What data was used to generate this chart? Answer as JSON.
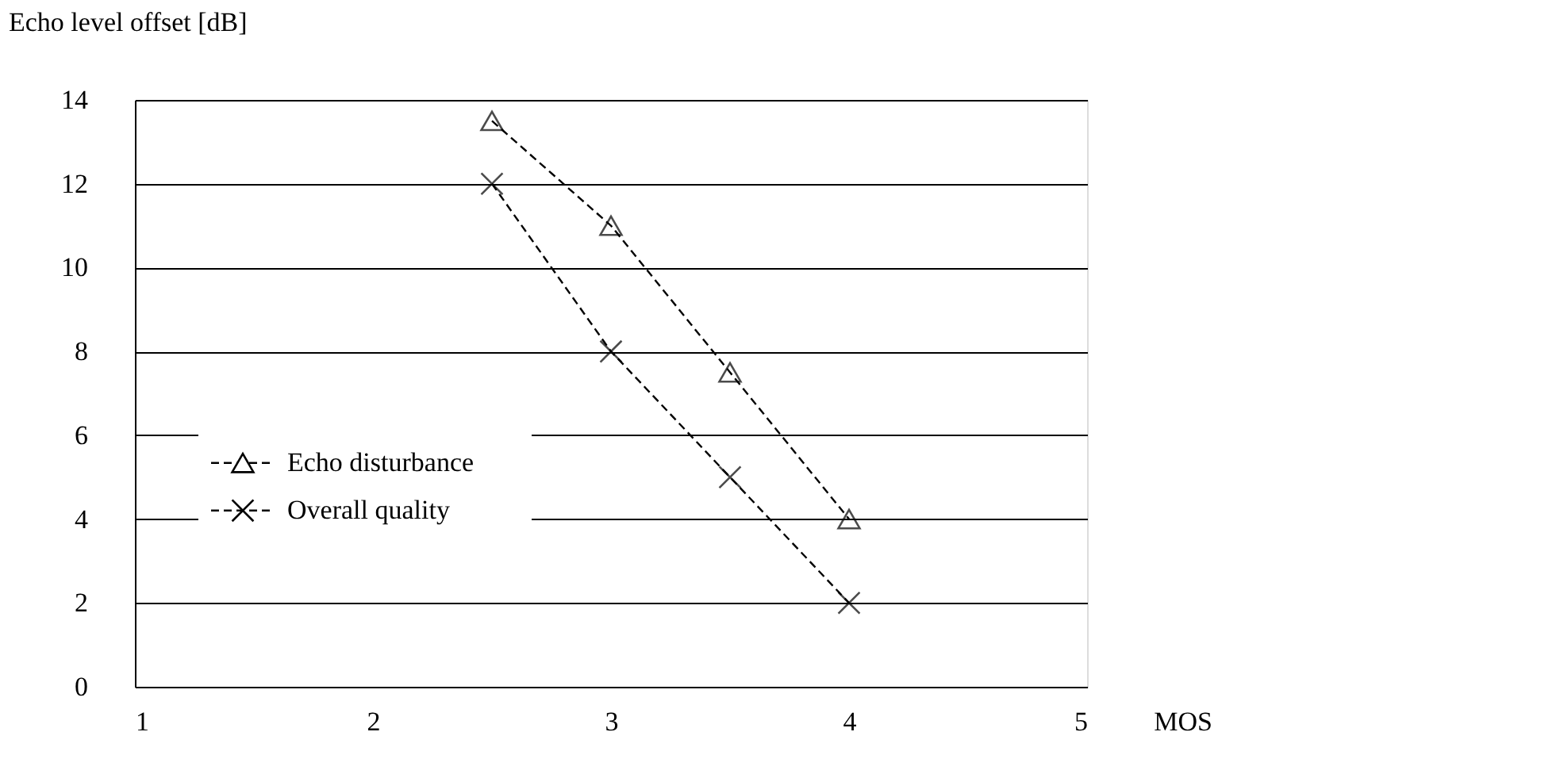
{
  "chart_data": {
    "type": "line",
    "xlabel": "MOS",
    "ylabel": "Echo level offset [dB]",
    "xlim": [
      1,
      5
    ],
    "xticks": [
      1,
      2,
      3,
      4,
      5
    ],
    "ylim": [
      0,
      14
    ],
    "yticks": [
      0,
      2,
      4,
      6,
      8,
      10,
      12,
      14
    ],
    "grid": "y",
    "legend": "left",
    "line_style": "dashed",
    "series": [
      {
        "name": "Echo disturbance",
        "color": "#000000",
        "marker": "triangle",
        "x": [
          2.5,
          3,
          3.5,
          4
        ],
        "values": [
          13.5,
          11,
          7.5,
          4
        ]
      },
      {
        "name": "Overall quality",
        "color": "#000000",
        "marker": "cross",
        "x": [
          2.5,
          3,
          3.5,
          4
        ],
        "values": [
          12,
          8,
          5,
          2
        ]
      }
    ]
  }
}
